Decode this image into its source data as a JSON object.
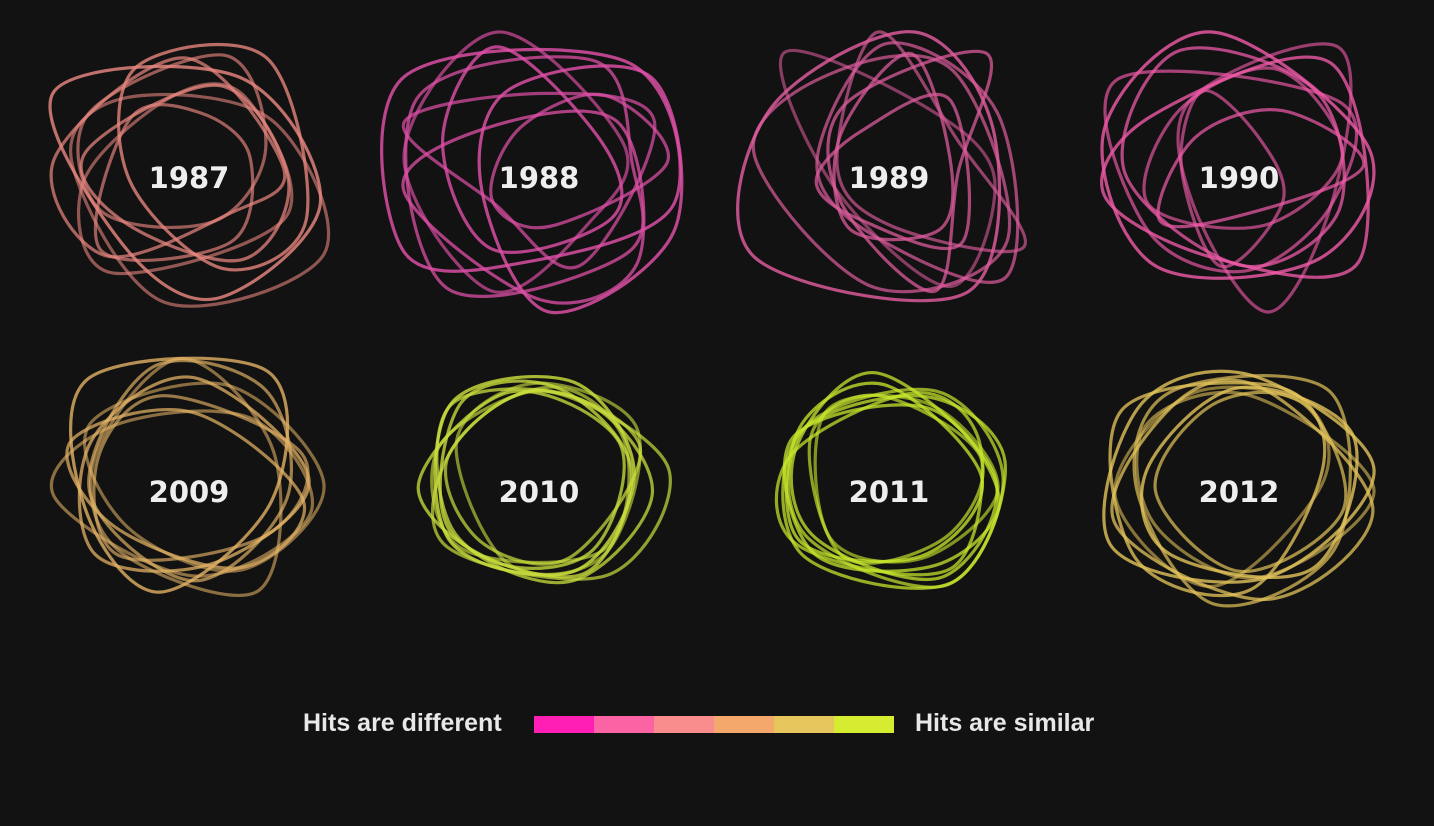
{
  "legend": {
    "left_label": "Hits are different",
    "right_label": "Hits are similar",
    "colors": [
      "#ff1fb4",
      "#fb63a4",
      "#f98c8c",
      "#f4a86c",
      "#e6c65c",
      "#d6ec30"
    ]
  },
  "chart_data": {
    "type": "small-multiples",
    "encoding": "Looping shapes per year; color from pink (hits are different) to yellow-green (hits are similar)",
    "panels": [
      {
        "year": "1987",
        "color": "#e8867f",
        "similarity": 0.38
      },
      {
        "year": "1988",
        "color": "#dd4fa6",
        "similarity": 0.08
      },
      {
        "year": "1989",
        "color": "#dc5c9c",
        "similarity": 0.14
      },
      {
        "year": "1990",
        "color": "#ee5aa8",
        "similarity": 0.18
      },
      {
        "year": "2009",
        "color": "#e4b465",
        "similarity": 0.72
      },
      {
        "year": "2010",
        "color": "#c9dd3c",
        "similarity": 0.95
      },
      {
        "year": "2011",
        "color": "#c6e62c",
        "similarity": 0.98
      },
      {
        "year": "2012",
        "color": "#e2c35a",
        "similarity": 0.8
      }
    ]
  }
}
